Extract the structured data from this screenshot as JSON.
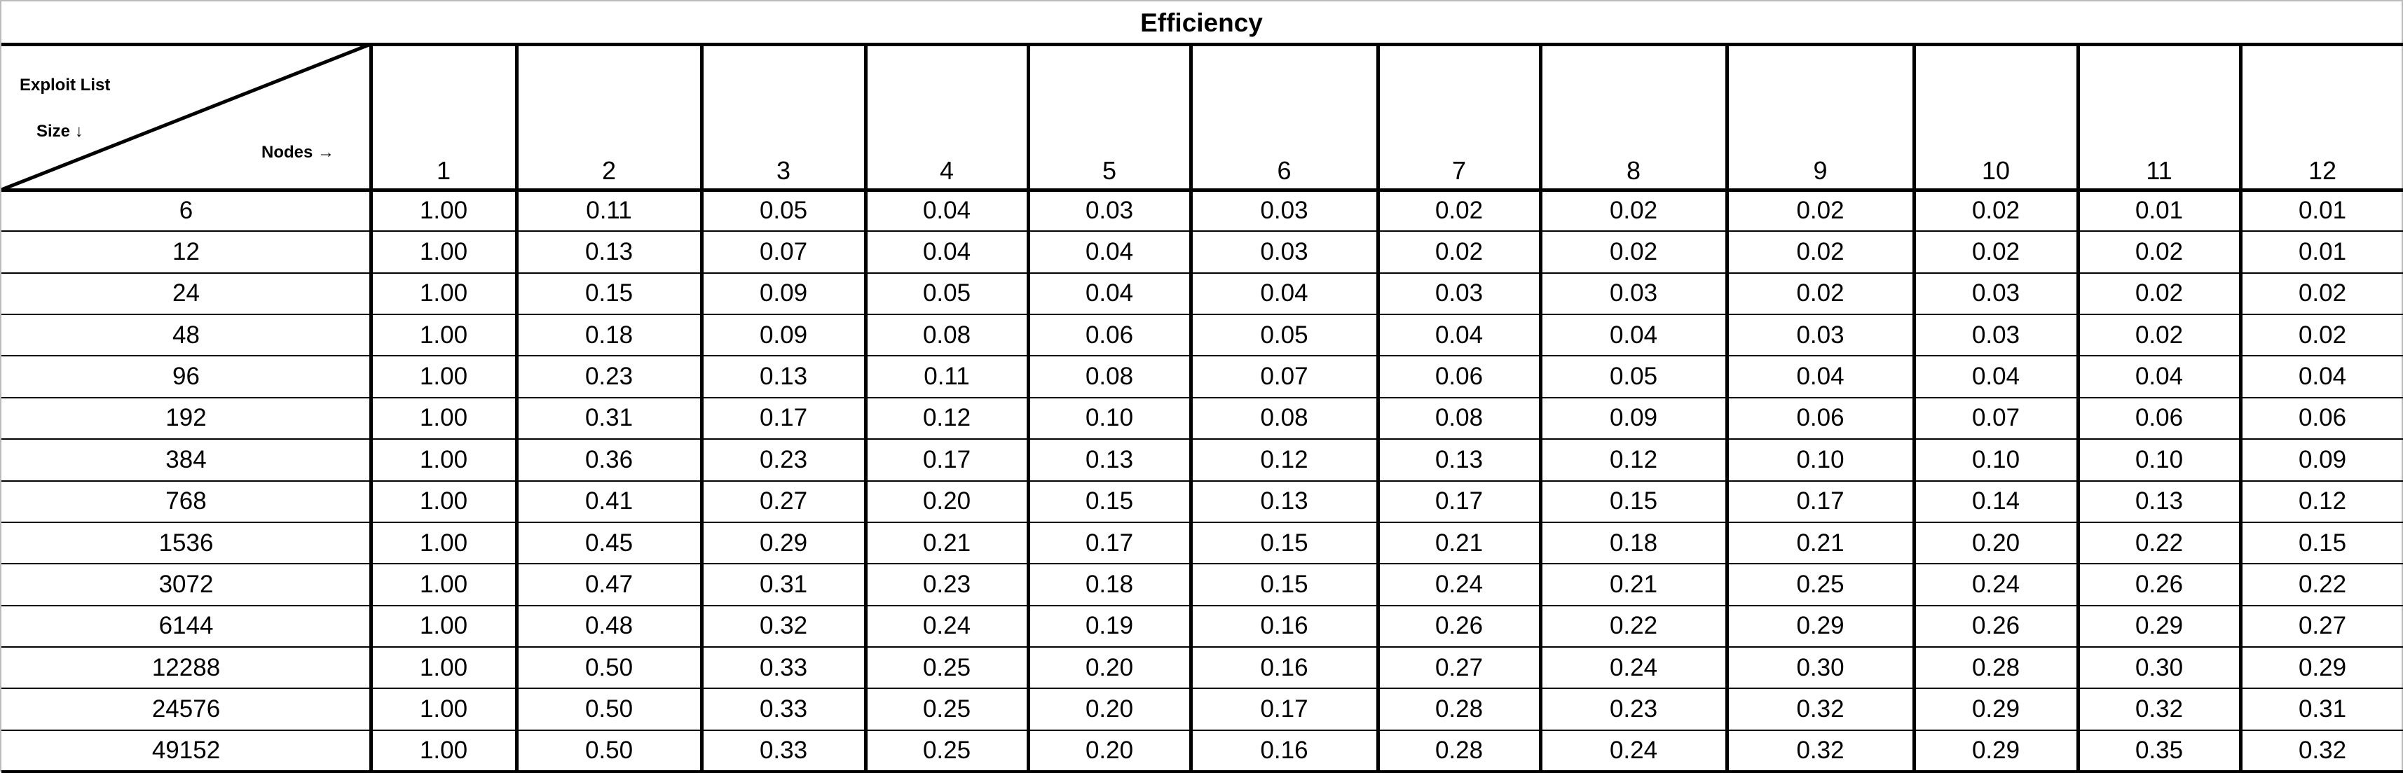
{
  "header": {
    "title": "Efficiency"
  },
  "corner": {
    "exploit_list": "Exploit List",
    "size": "Size ↓",
    "nodes": "Nodes →"
  },
  "columns": [
    "1",
    "2",
    "3",
    "4",
    "5",
    "6",
    "7",
    "8",
    "9",
    "10",
    "11",
    "12"
  ],
  "rows": [
    {
      "label": "6",
      "values": [
        "1.00",
        "0.11",
        "0.05",
        "0.04",
        "0.03",
        "0.03",
        "0.02",
        "0.02",
        "0.02",
        "0.02",
        "0.01",
        "0.01"
      ]
    },
    {
      "label": "12",
      "values": [
        "1.00",
        "0.13",
        "0.07",
        "0.04",
        "0.04",
        "0.03",
        "0.02",
        "0.02",
        "0.02",
        "0.02",
        "0.02",
        "0.01"
      ]
    },
    {
      "label": "24",
      "values": [
        "1.00",
        "0.15",
        "0.09",
        "0.05",
        "0.04",
        "0.04",
        "0.03",
        "0.03",
        "0.02",
        "0.03",
        "0.02",
        "0.02"
      ]
    },
    {
      "label": "48",
      "values": [
        "1.00",
        "0.18",
        "0.09",
        "0.08",
        "0.06",
        "0.05",
        "0.04",
        "0.04",
        "0.03",
        "0.03",
        "0.02",
        "0.02"
      ]
    },
    {
      "label": "96",
      "values": [
        "1.00",
        "0.23",
        "0.13",
        "0.11",
        "0.08",
        "0.07",
        "0.06",
        "0.05",
        "0.04",
        "0.04",
        "0.04",
        "0.04"
      ]
    },
    {
      "label": "192",
      "values": [
        "1.00",
        "0.31",
        "0.17",
        "0.12",
        "0.10",
        "0.08",
        "0.08",
        "0.09",
        "0.06",
        "0.07",
        "0.06",
        "0.06"
      ]
    },
    {
      "label": "384",
      "values": [
        "1.00",
        "0.36",
        "0.23",
        "0.17",
        "0.13",
        "0.12",
        "0.13",
        "0.12",
        "0.10",
        "0.10",
        "0.10",
        "0.09"
      ]
    },
    {
      "label": "768",
      "values": [
        "1.00",
        "0.41",
        "0.27",
        "0.20",
        "0.15",
        "0.13",
        "0.17",
        "0.15",
        "0.17",
        "0.14",
        "0.13",
        "0.12"
      ]
    },
    {
      "label": "1536",
      "values": [
        "1.00",
        "0.45",
        "0.29",
        "0.21",
        "0.17",
        "0.15",
        "0.21",
        "0.18",
        "0.21",
        "0.20",
        "0.22",
        "0.15"
      ]
    },
    {
      "label": "3072",
      "values": [
        "1.00",
        "0.47",
        "0.31",
        "0.23",
        "0.18",
        "0.15",
        "0.24",
        "0.21",
        "0.25",
        "0.24",
        "0.26",
        "0.22"
      ]
    },
    {
      "label": "6144",
      "values": [
        "1.00",
        "0.48",
        "0.32",
        "0.24",
        "0.19",
        "0.16",
        "0.26",
        "0.22",
        "0.29",
        "0.26",
        "0.29",
        "0.27"
      ]
    },
    {
      "label": "12288",
      "values": [
        "1.00",
        "0.50",
        "0.33",
        "0.25",
        "0.20",
        "0.16",
        "0.27",
        "0.24",
        "0.30",
        "0.28",
        "0.30",
        "0.29"
      ]
    },
    {
      "label": "24576",
      "values": [
        "1.00",
        "0.50",
        "0.33",
        "0.25",
        "0.20",
        "0.17",
        "0.28",
        "0.23",
        "0.32",
        "0.29",
        "0.32",
        "0.31"
      ]
    },
    {
      "label": "49152",
      "values": [
        "1.00",
        "0.50",
        "0.33",
        "0.25",
        "0.20",
        "0.16",
        "0.28",
        "0.24",
        "0.32",
        "0.29",
        "0.35",
        "0.32"
      ]
    }
  ]
}
